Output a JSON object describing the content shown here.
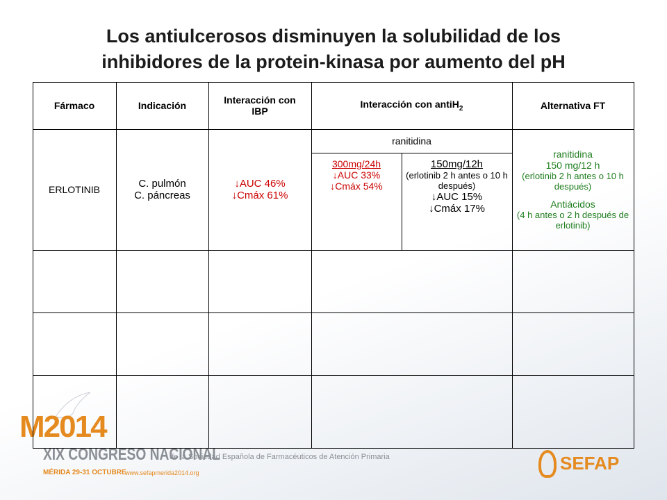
{
  "title": [
    "Los antiulcerosos disminuyen la solubilidad de los",
    "inhibidores de la protein-kinasa por aumento del pH"
  ],
  "table": {
    "headers": [
      "Fármaco",
      "Indicación",
      "Interacción con IBP",
      "Interacción con antiH",
      "Alternativa FT"
    ],
    "header_subscript": "2",
    "rows": [
      {
        "drug": "ERLOTINIB",
        "indication": [
          "C. pulmón",
          "C. páncreas"
        ],
        "ibp": [
          "↓AUC 46%",
          "↓Cmáx 61%"
        ],
        "antih2": {
          "drug": "ranitidina",
          "regimen_a": [
            "300mg/24h",
            "↓AUC 33%",
            "↓Cmáx 54%"
          ],
          "regimen_b": [
            "150mg/12h",
            "(erlotinib 2 h antes o 10 h después)",
            "↓AUC 15%",
            "↓Cmáx 17%"
          ]
        },
        "alternative": [
          {
            "title": "ranitidina",
            "lines": [
              "150 mg/12 h",
              "(erlotinib 2 h antes o 10 h después)"
            ]
          },
          {
            "title": "Antiácidos",
            "lines": [
              "(4 h antes o 2 h después de erlotinib)"
            ]
          }
        ]
      }
    ]
  },
  "footer": {
    "logo_m": "M2014",
    "congress": "XIX CONGRESO NACIONAL",
    "society": "de la Sociedad Española de Farmacéuticos de Atención Primaria",
    "place": "MÉRIDA 29-31 OCTUBRE",
    "web": "www.sefapmerida2014.org",
    "brand": "SEFAP"
  }
}
